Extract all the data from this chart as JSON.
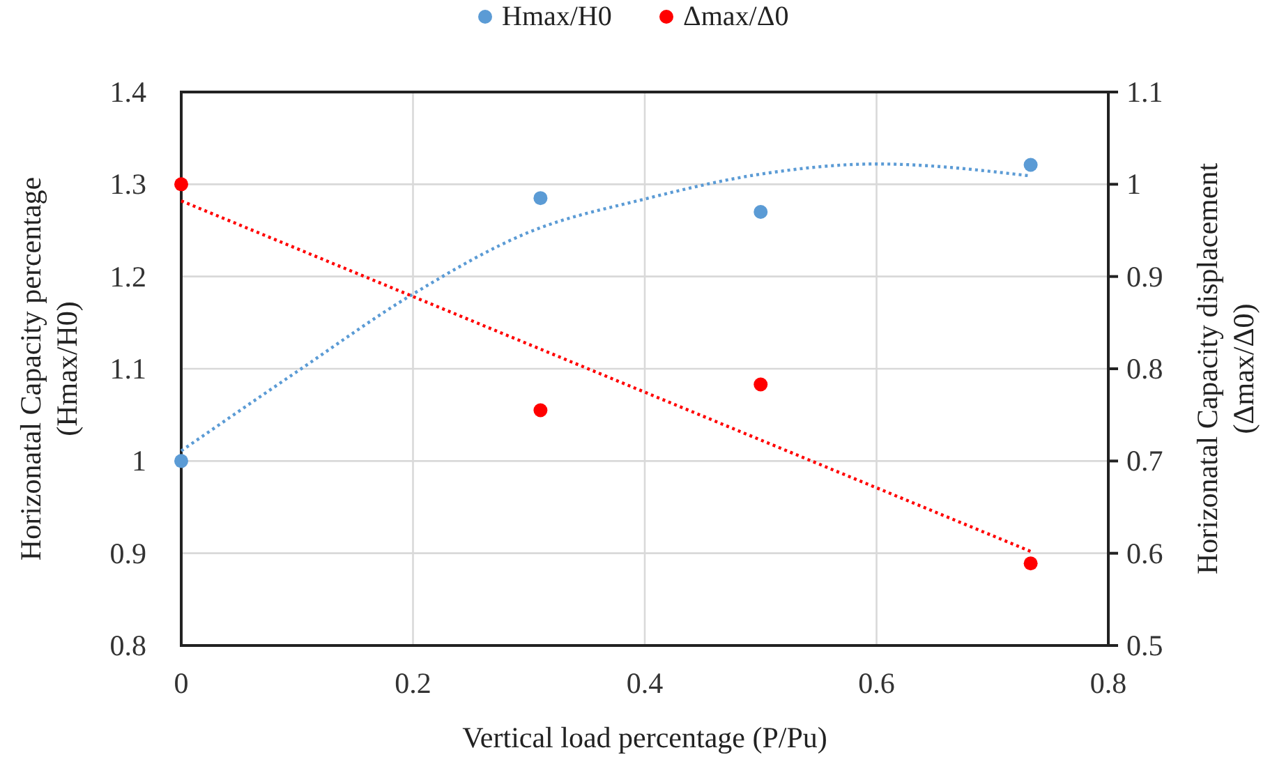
{
  "chart_data": {
    "type": "scatter",
    "xlabel": "Vertical load percentage  (P/Pu)",
    "ylabel": "Horizonatal  Capacity  percentage\n(Hmax/H0)",
    "y2label": "Horizonatal  Capacity  displacement\n(Δmax/Δ0)",
    "xlim": [
      0,
      0.8
    ],
    "xticks": [
      0,
      0.2,
      0.4,
      0.6,
      0.8
    ],
    "ylim": [
      0.8,
      1.4
    ],
    "yticks": [
      0.8,
      0.9,
      1,
      1.1,
      1.2,
      1.3,
      1.4
    ],
    "y2lim": [
      0.5,
      1.1
    ],
    "y2ticks": [
      0.5,
      0.6,
      0.7,
      0.8,
      0.9,
      1,
      1.1
    ],
    "grid": true,
    "legend": "top",
    "marker": "circle",
    "series": [
      {
        "name": "Hmax/H0",
        "color": "#5b9bd5",
        "x": [
          0,
          0.31,
          0.5,
          0.733
        ],
        "values": [
          1.0,
          1.285,
          1.27,
          1.321
        ]
      },
      {
        "name": "Δmax/Δ0",
        "color": "#ff0000",
        "axis": "y2",
        "x": [
          0,
          0.31,
          0.5,
          0.733
        ],
        "values": [
          1.0,
          0.755,
          0.783,
          0.589
        ]
      },
      {
        "type": "line",
        "color": "#5b9bd5",
        "marker": "none",
        "line_style": "dotted",
        "x": [
          0,
          0.1,
          0.2,
          0.3,
          0.4,
          0.5,
          0.6,
          0.733
        ],
        "values": [
          1.011,
          1.097,
          1.181,
          1.248,
          1.284,
          1.311,
          1.322,
          1.309
        ]
      },
      {
        "type": "line",
        "color": "#ff0000",
        "axis": "y2",
        "marker": "none",
        "line_style": "dotted",
        "x": [
          0,
          0.733
        ],
        "values": [
          0.982,
          0.602
        ]
      }
    ]
  }
}
